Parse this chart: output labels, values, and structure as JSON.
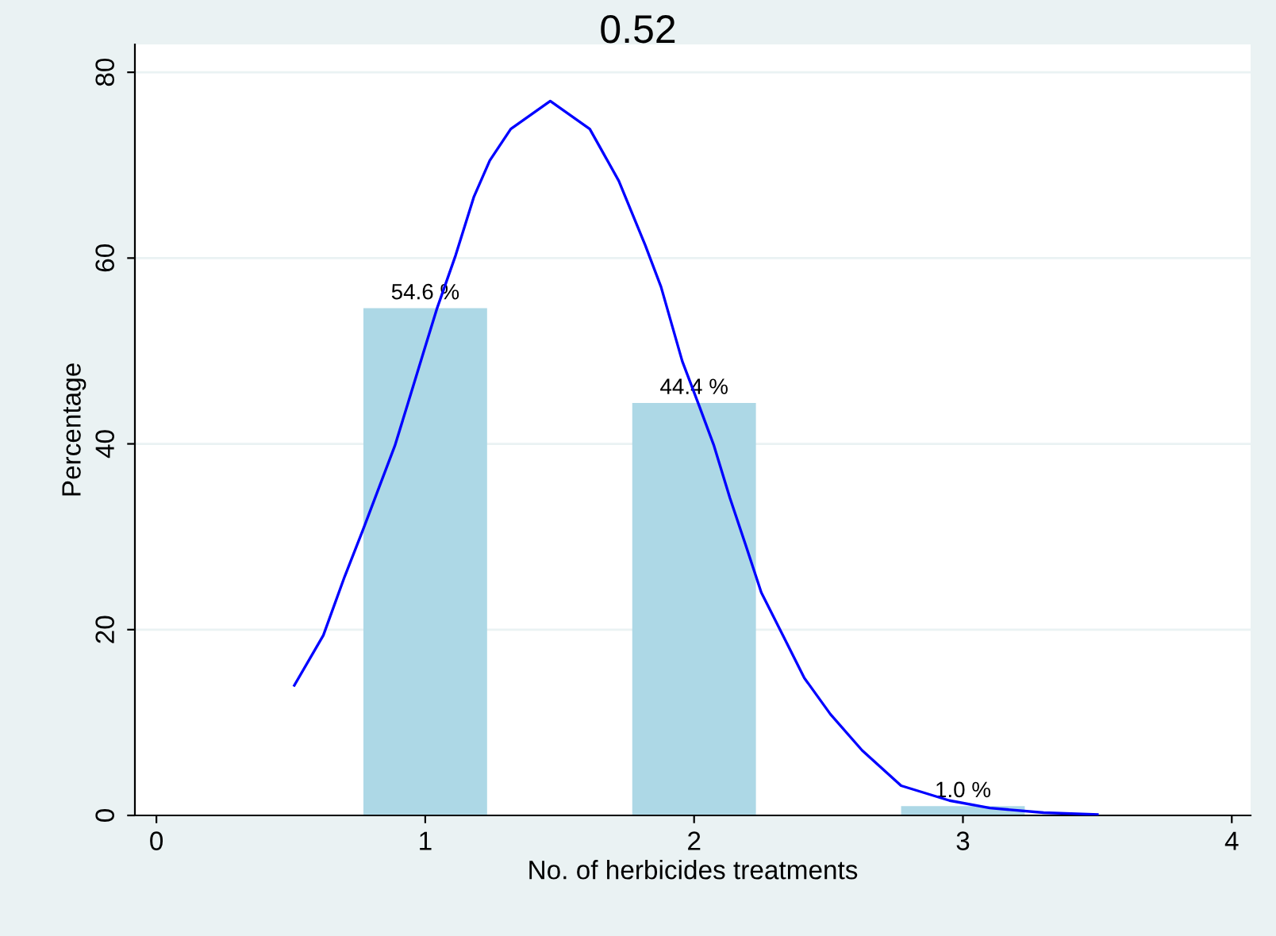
{
  "chart_data": {
    "type": "bar",
    "title": "0.52",
    "xlabel": "No. of herbicides treatments",
    "ylabel": "Percentage",
    "series": [
      {
        "color": "#add8e6",
        "x": [
          1,
          2,
          3
        ],
        "values": [
          54.6,
          44.4,
          1.0
        ],
        "value_labels": [
          "54.6 %",
          "44.4 %",
          "1.0 %"
        ]
      },
      {
        "type": "line",
        "color": "#0000ff",
        "x": [
          0.513,
          0.621,
          0.7,
          0.769,
          0.828,
          0.887,
          0.936,
          0.995,
          1.044,
          1.113,
          1.181,
          1.24,
          1.318,
          1.465,
          1.612,
          1.72,
          1.818,
          1.877,
          1.956,
          2.015,
          2.074,
          2.133,
          2.192,
          2.25,
          2.33,
          2.41,
          2.507,
          2.625,
          2.77,
          2.95,
          3.1,
          3.3,
          3.5
        ],
        "values": [
          14.0,
          19.4,
          25.7,
          30.8,
          35.3,
          39.8,
          44.4,
          50.0,
          54.6,
          60.3,
          66.6,
          70.5,
          73.9,
          76.9,
          73.9,
          68.3,
          61.4,
          56.9,
          48.9,
          44.4,
          39.8,
          34.2,
          29.1,
          24.0,
          19.4,
          14.8,
          10.9,
          7.0,
          3.2,
          1.6,
          0.8,
          0.3,
          0.1
        ]
      }
    ],
    "xlim": [
      -0.08,
      4.07
    ],
    "ylim": [
      0,
      83
    ],
    "xticks": [
      0,
      1,
      2,
      3,
      4
    ],
    "yticks": [
      0,
      20,
      40,
      60,
      80
    ],
    "grid": "y",
    "legend": false
  }
}
